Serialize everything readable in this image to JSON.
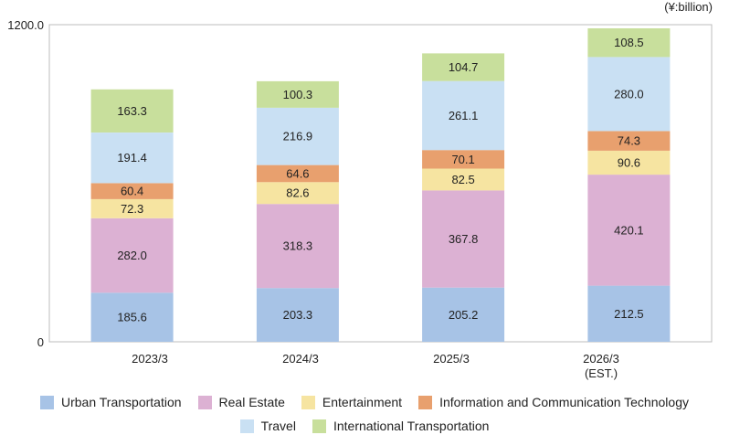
{
  "unit_label": "(¥:billion)",
  "chart_data": {
    "type": "bar",
    "stacked": true,
    "categories": [
      "2023/3",
      "2024/3",
      "2025/3",
      "2026/3"
    ],
    "category_notes": [
      "",
      "",
      "",
      "(EST.)"
    ],
    "ylim": [
      0,
      1200.0
    ],
    "y_ticks": [
      "0",
      "1200.0"
    ],
    "grid": false,
    "legend_position": "bottom",
    "series": [
      {
        "name": "Urban Transportation",
        "color": "#a7c3e6",
        "values": [
          185.6,
          203.3,
          205.2,
          212.5
        ],
        "labels": [
          "185.6",
          "203.3",
          "205.2",
          "212.5"
        ]
      },
      {
        "name": "Real Estate",
        "color": "#dcb1d3",
        "values": [
          282.0,
          318.3,
          367.8,
          420.1
        ],
        "labels": [
          "282.0",
          "318.3",
          "367.8",
          "420.1"
        ]
      },
      {
        "name": "Entertainment",
        "color": "#f6e4a1",
        "values": [
          72.3,
          82.6,
          82.5,
          90.6
        ],
        "labels": [
          "72.3",
          "82.6",
          "82.5",
          "90.6"
        ]
      },
      {
        "name": "Information and Communication Technology",
        "color": "#e8a06e",
        "values": [
          60.4,
          64.6,
          70.1,
          74.3
        ],
        "labels": [
          "60.4",
          "64.6",
          "70.1",
          "74.3"
        ]
      },
      {
        "name": "Travel",
        "color": "#c9e0f3",
        "values": [
          191.4,
          216.9,
          261.1,
          280.0
        ],
        "labels": [
          "191.4",
          "216.9",
          "261.1",
          "280.0"
        ]
      },
      {
        "name": "International Transportation",
        "color": "#c8df9c",
        "values": [
          163.3,
          100.3,
          104.7,
          108.5
        ],
        "labels": [
          "163.3",
          "100.3",
          "104.7",
          "108.5"
        ]
      }
    ]
  }
}
